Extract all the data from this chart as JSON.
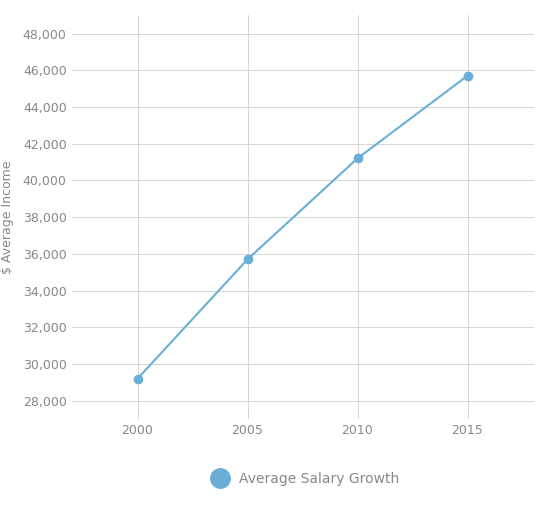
{
  "x": [
    2000,
    2005,
    2010,
    2015
  ],
  "y": [
    29200,
    35700,
    41200,
    45700
  ],
  "line_color": "#6aaed6",
  "marker_color": "#6aaed6",
  "marker_size": 6,
  "line_width": 1.5,
  "ylabel": "$ Average Income",
  "ylim": [
    27000,
    49000
  ],
  "yticks": [
    28000,
    30000,
    32000,
    34000,
    36000,
    38000,
    40000,
    42000,
    44000,
    46000,
    48000
  ],
  "xlim": [
    1997,
    2018
  ],
  "xticks": [
    2000,
    2005,
    2010,
    2015
  ],
  "legend_label": "Average Salary Growth",
  "background_color": "#ffffff",
  "grid_color": "#d0d0d0",
  "tick_label_color": "#888888",
  "axis_label_color": "#888888"
}
